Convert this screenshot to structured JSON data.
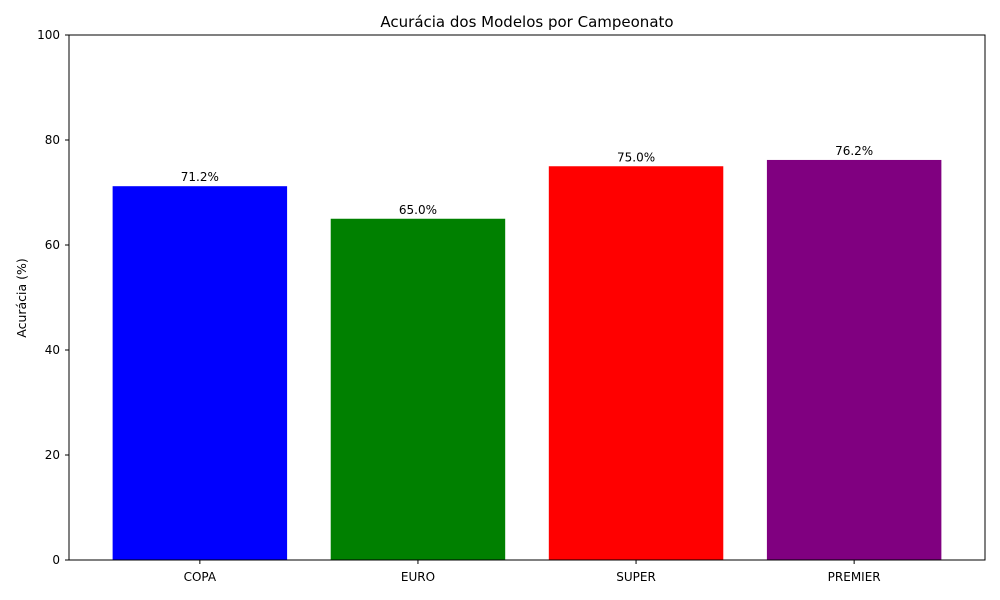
{
  "chart_data": {
    "type": "bar",
    "title": "Acurácia dos Modelos por Campeonato",
    "xlabel": "",
    "ylabel": "Acurácia (%)",
    "categories": [
      "COPA",
      "EURO",
      "SUPER",
      "PREMIER"
    ],
    "values": [
      71.2,
      65.0,
      75.0,
      76.2
    ],
    "data_labels": [
      "71.2%",
      "65.0%",
      "75.0%",
      "76.2%"
    ],
    "colors": [
      "#0000ff",
      "#008000",
      "#ff0000",
      "#800080"
    ],
    "ylim": [
      0,
      100
    ],
    "yticks": [
      0,
      20,
      40,
      60,
      80,
      100
    ],
    "grid": false,
    "legend": "none"
  }
}
